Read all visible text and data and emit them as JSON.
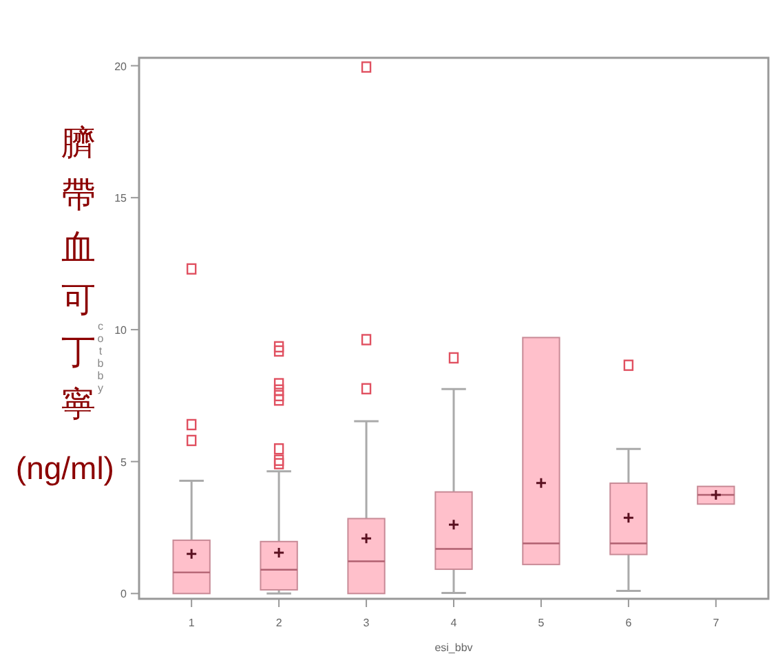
{
  "chart_data": {
    "type": "box",
    "categories": [
      "1",
      "2",
      "3",
      "4",
      "5",
      "6",
      "7"
    ],
    "xlabel": "esi_bbv",
    "ylabel": "cotbby",
    "annotations": [
      "臍帶血可丁寧 (ng/ml)"
    ],
    "ylim": [
      -0.2,
      20.3
    ],
    "yticks": [
      0,
      5,
      10,
      15,
      20
    ],
    "color": "#ffc0cb",
    "marker": "square",
    "boxes": [
      {
        "low": 0,
        "q1": 0,
        "median": 0.8,
        "q3": 2.02,
        "high": 4.27,
        "mean": 1.5,
        "outliers": [
          5.8,
          6.4,
          12.3
        ]
      },
      {
        "low": 0,
        "q1": 0.14,
        "median": 0.9,
        "q3": 1.97,
        "high": 4.63,
        "mean": 1.55,
        "outliers": [
          4.92,
          5.05,
          5.48,
          7.33,
          7.5,
          7.71,
          7.95,
          9.19,
          9.35
        ]
      },
      {
        "low": 0,
        "q1": 0,
        "median": 1.22,
        "q3": 2.84,
        "high": 6.53,
        "mean": 2.09,
        "outliers": [
          7.76,
          9.62,
          19.95
        ]
      },
      {
        "low": 0.02,
        "q1": 0.92,
        "median": 1.69,
        "q3": 3.85,
        "high": 7.75,
        "mean": 2.61,
        "outliers": [
          8.93
        ]
      },
      {
        "low": 1.1,
        "q1": 1.1,
        "median": 1.9,
        "q3": 9.7,
        "high": 9.7,
        "mean": 4.19
      },
      {
        "low": 0.1,
        "q1": 1.48,
        "median": 1.9,
        "q3": 4.18,
        "high": 5.48,
        "mean": 2.87,
        "outliers": [
          8.65
        ]
      },
      {
        "low": 3.39,
        "q1": 3.39,
        "median": 3.74,
        "q3": 4.06,
        "high": 4.06,
        "mean": 3.74
      }
    ]
  }
}
